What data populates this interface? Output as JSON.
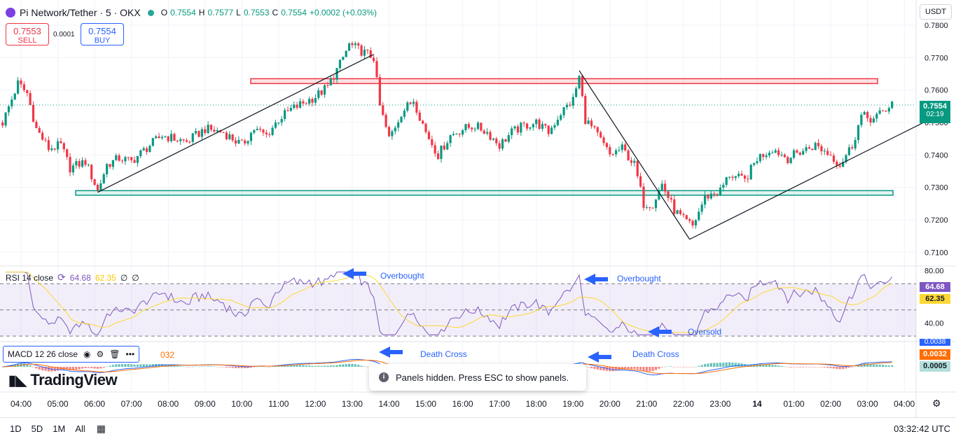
{
  "header": {
    "symbol_title": "Pi Network/Tether · 5 · OKX",
    "ohlc": {
      "o_label": "O",
      "o": "0.7554",
      "h_label": "H",
      "h": "0.7577",
      "l_label": "L",
      "l": "0.7553",
      "c_label": "C",
      "c": "0.7554",
      "change": "+0.0002 (+0.03%)"
    }
  },
  "trade": {
    "sell_price": "0.7553",
    "sell_label": "SELL",
    "spread": "0.0001",
    "buy_price": "0.7554",
    "buy_label": "BUY"
  },
  "currency_button": "USDT",
  "last_price": {
    "price": "0.7554",
    "countdown": "02:19"
  },
  "rsi_legend": {
    "name": "RSI 14 close",
    "rsi": "64.68",
    "ma": "62.35",
    "extra1": "∅",
    "extra2": "∅"
  },
  "rsi_tags": {
    "rsi": "64.68",
    "ma": "62.35"
  },
  "macd_legend": {
    "name": "MACD 12 26 close",
    "value_cut": "032"
  },
  "macd_tags": {
    "macd": "0.0038",
    "signal": "0.0032",
    "hist": "0.0005"
  },
  "toast": "Panels hidden. Press ESC to show panels.",
  "watermark": "TradingView",
  "timeframes": [
    "1D",
    "5D",
    "1M",
    "All"
  ],
  "clock": "03:32:42 UTC",
  "colors": {
    "up": "#089981",
    "down": "#f23645",
    "rsi": "#7e57c2",
    "rsi_ma": "#fdd835",
    "macd": "#2962ff",
    "signal": "#ff6d00",
    "resistance": "#f23645",
    "support": "#089981",
    "annotation": "#2962ff"
  },
  "icons": {
    "logo": "pi-network-logo",
    "settings": "gear-icon",
    "calendar": "calendar-range-icon",
    "eye": "eye-icon",
    "gear": "settings-icon",
    "trash": "trash-icon",
    "more": "more-icon",
    "info": "info-icon"
  },
  "chart_data": [
    {
      "type": "candlestick",
      "title": "",
      "x_ticks": [
        "04:00",
        "05:00",
        "06:00",
        "07:00",
        "08:00",
        "09:00",
        "10:00",
        "11:00",
        "12:00",
        "13:00",
        "14:00",
        "15:00",
        "16:00",
        "17:00",
        "18:00",
        "19:00",
        "20:00",
        "21:00",
        "22:00",
        "23:00",
        "14",
        "01:00",
        "02:00",
        "03:00",
        "04:00"
      ],
      "y_ticks": [
        0.71,
        0.72,
        0.73,
        0.74,
        0.75,
        0.76,
        0.77,
        0.78
      ],
      "ylim": [
        0.7075,
        0.7815
      ],
      "close_path": [
        [
          "03:30",
          0.75
        ],
        [
          "03:55",
          0.762
        ],
        [
          "04:10",
          0.759
        ],
        [
          "04:25",
          0.748
        ],
        [
          "04:45",
          0.742
        ],
        [
          "05:05",
          0.743
        ],
        [
          "05:20",
          0.736
        ],
        [
          "05:45",
          0.738
        ],
        [
          "06:05",
          0.729
        ],
        [
          "06:20",
          0.737
        ],
        [
          "06:40",
          0.739
        ],
        [
          "07:00",
          0.738
        ],
        [
          "07:30",
          0.743
        ],
        [
          "07:50",
          0.746
        ],
        [
          "08:10",
          0.745
        ],
        [
          "08:30",
          0.744
        ],
        [
          "09:00",
          0.748
        ],
        [
          "09:30",
          0.747
        ],
        [
          "10:00",
          0.743
        ],
        [
          "10:20",
          0.748
        ],
        [
          "10:40",
          0.746
        ],
        [
          "11:00",
          0.751
        ],
        [
          "11:20",
          0.754
        ],
        [
          "11:40",
          0.756
        ],
        [
          "12:00",
          0.758
        ],
        [
          "12:20",
          0.761
        ],
        [
          "12:40",
          0.768
        ],
        [
          "12:55",
          0.774
        ],
        [
          "13:15",
          0.772
        ],
        [
          "13:35",
          0.77
        ],
        [
          "13:45",
          0.755
        ],
        [
          "14:00",
          0.745
        ],
        [
          "14:20",
          0.753
        ],
        [
          "14:40",
          0.757
        ],
        [
          "15:00",
          0.747
        ],
        [
          "15:20",
          0.74
        ],
        [
          "15:40",
          0.746
        ],
        [
          "16:00",
          0.748
        ],
        [
          "16:20",
          0.749
        ],
        [
          "16:40",
          0.747
        ],
        [
          "17:00",
          0.743
        ],
        [
          "17:20",
          0.747
        ],
        [
          "17:40",
          0.749
        ],
        [
          "18:00",
          0.75
        ],
        [
          "18:20",
          0.747
        ],
        [
          "18:40",
          0.753
        ],
        [
          "19:00",
          0.757
        ],
        [
          "19:10",
          0.764
        ],
        [
          "19:20",
          0.751
        ],
        [
          "19:40",
          0.746
        ],
        [
          "20:00",
          0.74
        ],
        [
          "20:20",
          0.742
        ],
        [
          "20:40",
          0.737
        ],
        [
          "20:55",
          0.725
        ],
        [
          "21:10",
          0.725
        ],
        [
          "21:25",
          0.731
        ],
        [
          "21:45",
          0.723
        ],
        [
          "22:00",
          0.72
        ],
        [
          "22:15",
          0.718
        ],
        [
          "22:35",
          0.727
        ],
        [
          "23:00",
          0.729
        ],
        [
          "23:15",
          0.734
        ],
        [
          "23:40",
          0.732
        ],
        [
          "24:00",
          0.739
        ],
        [
          "24:25",
          0.742
        ],
        [
          "24:50",
          0.739
        ],
        [
          "25:10",
          0.741
        ],
        [
          "25:35",
          0.743
        ],
        [
          "26:00",
          0.74
        ],
        [
          "26:15",
          0.737
        ],
        [
          "26:35",
          0.743
        ],
        [
          "26:50",
          0.752
        ],
        [
          "27:10",
          0.751
        ],
        [
          "27:30",
          0.754
        ],
        [
          "27:40",
          0.756
        ]
      ],
      "levels": {
        "resistance": [
          0.762,
          0.7635
        ],
        "support": [
          0.7276,
          0.729
        ]
      },
      "trendlines": [
        [
          [
            "06:05",
            0.7285
          ],
          [
            "13:35",
            0.771
          ]
        ],
        [
          [
            "19:10",
            0.766
          ],
          [
            "22:10",
            0.714
          ]
        ],
        [
          [
            "22:10",
            0.714
          ],
          [
            "28:40",
            0.7508
          ]
        ]
      ]
    },
    {
      "type": "line",
      "title": "RSI 14 close",
      "y_ticks": [
        40.0,
        80.0
      ],
      "ylim": [
        29,
        82
      ],
      "bands": [
        70,
        50,
        30
      ],
      "annotations": [
        {
          "text": "Overbought",
          "x": "13:00",
          "y": 71.5
        },
        {
          "text": "Overbought",
          "x": "19:35",
          "y": 69.5
        },
        {
          "text": "Oversold",
          "x": "22:20",
          "y": 33.5
        }
      ]
    },
    {
      "type": "histogram",
      "title": "MACD 12 26 close",
      "annotations": [
        {
          "text": "Death Cross",
          "x": "13:55"
        },
        {
          "text": "Death Cross",
          "x": "20:30"
        }
      ]
    }
  ]
}
